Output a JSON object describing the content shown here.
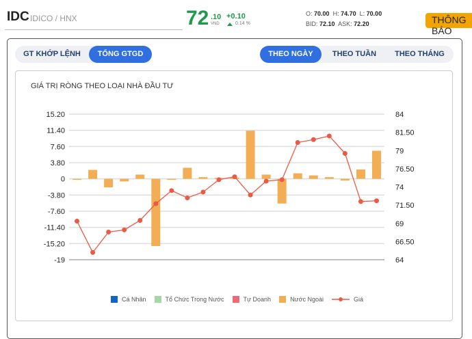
{
  "header": {
    "ticker": "IDC",
    "exchange": "IDICO / HNX",
    "price_int": "72",
    "price_dec": ".10",
    "currency": "VND",
    "change": "+0.10",
    "change_pct": "0.14 %",
    "open_label": "O:",
    "open": "70.00",
    "high_label": "H:",
    "high": "74.70",
    "low_label": "L:",
    "low": "70.00",
    "bid_label": "BID:",
    "bid": "72.10",
    "ask_label": "ASK:",
    "ask": "72.20",
    "notice_button": "THÔNG BÁO"
  },
  "tabs_left": [
    {
      "label": "GT KHỚP LỆNH",
      "active": false
    },
    {
      "label": "TỔNG GTGD",
      "active": true
    }
  ],
  "tabs_right": [
    {
      "label": "THEO NGÀY",
      "active": true
    },
    {
      "label": "THEO TUẦN",
      "active": false
    },
    {
      "label": "THEO THÁNG",
      "active": false
    }
  ],
  "chart_title": "GIÁ TRỊ RÒNG THEO LOẠI NHÀ ĐẦU TƯ",
  "colors": {
    "ca_nhan": "#1565c0",
    "to_chuc": "#a5d6a7",
    "tu_doanh": "#ef6a78",
    "nuoc_ngoai": "#f2ad55",
    "gia": "#ea5a45"
  },
  "chart_data": {
    "type": "bar+line",
    "title": "GIÁ TRỊ RÒNG THEO LOẠI NHÀ ĐẦU TƯ",
    "left_ticks": [
      "15.20",
      "11.40",
      "7.60",
      "3.80",
      "0",
      "-3.80",
      "-7.60",
      "-11.40",
      "-15.20",
      "-19"
    ],
    "right_ticks": [
      "84",
      "81.50",
      "79",
      "76.50",
      "74",
      "71.50",
      "69",
      "66.50",
      "64"
    ],
    "ylim_left": [
      -19,
      15.2
    ],
    "ylim_right": [
      64,
      84
    ],
    "legend": [
      "Cá Nhân",
      "Tổ Chức Trong Nước",
      "Tự Doanh",
      "Nước Ngoài",
      "Giá"
    ],
    "legend_position": "bottom",
    "series": [
      {
        "name": "Nước Ngoài",
        "type": "bar",
        "values": [
          -0.2,
          2.1,
          -2.0,
          -0.6,
          1.0,
          -15.8,
          -0.2,
          2.6,
          0.4,
          0.2,
          0.3,
          11.3,
          1.0,
          -5.8,
          1.3,
          0.8,
          0.4,
          -0.4,
          2.2,
          6.6
        ]
      },
      {
        "name": "Giá",
        "type": "line",
        "values": [
          69.3,
          65.0,
          67.8,
          68.1,
          69.4,
          71.7,
          73.5,
          72.5,
          73.3,
          75.0,
          75.4,
          72.9,
          74.8,
          75.0,
          80.1,
          80.5,
          81.0,
          78.6,
          72.0,
          72.1
        ]
      }
    ]
  }
}
